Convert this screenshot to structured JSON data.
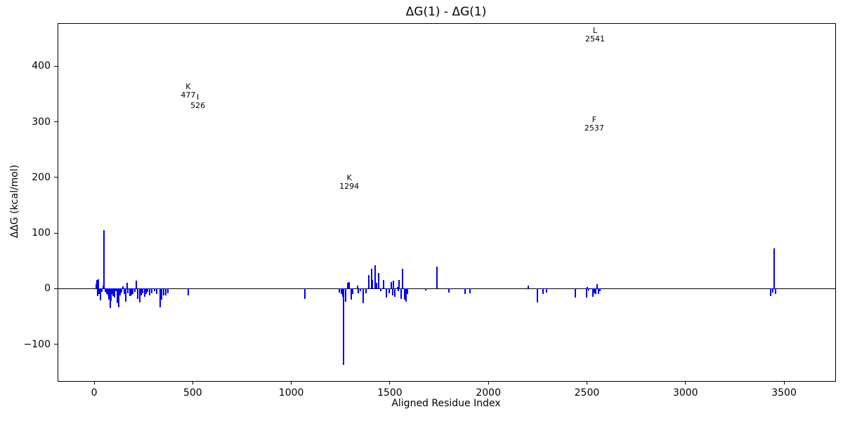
{
  "figure": {
    "background": "#ffffff",
    "axis_color": "#000000",
    "bar_color": "#0000ee"
  },
  "chart_data": {
    "type": "bar",
    "title": "ΔG(1) - ΔG(1)",
    "xlabel": "Aligned Residue Index",
    "ylabel": "ΔΔG (kcal/mol)",
    "xlim": [
      -182,
      3760
    ],
    "ylim": [
      -166,
      476
    ],
    "x_ticks": [
      0,
      500,
      1000,
      1500,
      2000,
      2500,
      3000,
      3500
    ],
    "y_ticks": [
      -100,
      0,
      100,
      200,
      300,
      400
    ],
    "grid": false,
    "legend": null,
    "bar_color": "#0000ee",
    "points": [
      [
        10,
        8
      ],
      [
        14,
        16
      ],
      [
        18,
        -14
      ],
      [
        22,
        17
      ],
      [
        26,
        -10
      ],
      [
        31,
        -21
      ],
      [
        38,
        -6
      ],
      [
        45,
        5
      ],
      [
        51,
        105
      ],
      [
        57,
        -6
      ],
      [
        64,
        -9
      ],
      [
        72,
        -12
      ],
      [
        76,
        -20
      ],
      [
        80,
        -35
      ],
      [
        84,
        -22
      ],
      [
        90,
        -10
      ],
      [
        97,
        -14
      ],
      [
        104,
        -16
      ],
      [
        110,
        -5
      ],
      [
        118,
        -26
      ],
      [
        124,
        -33
      ],
      [
        131,
        -12
      ],
      [
        138,
        -7
      ],
      [
        145,
        4
      ],
      [
        152,
        -10
      ],
      [
        160,
        -23
      ],
      [
        168,
        11
      ],
      [
        172,
        -8
      ],
      [
        180,
        -14
      ],
      [
        188,
        -12
      ],
      [
        196,
        -10
      ],
      [
        205,
        -6
      ],
      [
        215,
        14
      ],
      [
        222,
        -18
      ],
      [
        230,
        -25
      ],
      [
        238,
        -12
      ],
      [
        247,
        -8
      ],
      [
        256,
        -15
      ],
      [
        264,
        -10
      ],
      [
        272,
        -6
      ],
      [
        282,
        -12
      ],
      [
        292,
        -8
      ],
      [
        305,
        -5
      ],
      [
        318,
        -10
      ],
      [
        334,
        -33
      ],
      [
        342,
        -20
      ],
      [
        352,
        -12
      ],
      [
        363,
        -12
      ],
      [
        375,
        -8
      ],
      [
        479,
        -12
      ],
      [
        1070,
        -18
      ],
      [
        1245,
        -7
      ],
      [
        1253,
        -10
      ],
      [
        1260,
        -15
      ],
      [
        1264,
        -137
      ],
      [
        1277,
        -23
      ],
      [
        1285,
        10
      ],
      [
        1295,
        12
      ],
      [
        1306,
        -20
      ],
      [
        1312,
        -10
      ],
      [
        1335,
        5
      ],
      [
        1340,
        -8
      ],
      [
        1352,
        -5
      ],
      [
        1366,
        -26
      ],
      [
        1378,
        -8
      ],
      [
        1393,
        24
      ],
      [
        1407,
        36
      ],
      [
        1412,
        15
      ],
      [
        1424,
        42
      ],
      [
        1434,
        11
      ],
      [
        1444,
        28
      ],
      [
        1455,
        -5
      ],
      [
        1469,
        15
      ],
      [
        1483,
        -16
      ],
      [
        1498,
        -8
      ],
      [
        1509,
        12
      ],
      [
        1514,
        -12
      ],
      [
        1519,
        14
      ],
      [
        1527,
        -15
      ],
      [
        1540,
        3
      ],
      [
        1544,
        -5
      ],
      [
        1548,
        15
      ],
      [
        1556,
        -18
      ],
      [
        1564,
        36
      ],
      [
        1574,
        -20
      ],
      [
        1582,
        -23
      ],
      [
        1590,
        -10
      ],
      [
        1682,
        -3
      ],
      [
        1738,
        40
      ],
      [
        1801,
        -7
      ],
      [
        1881,
        -10
      ],
      [
        1905,
        -8
      ],
      [
        2201,
        5
      ],
      [
        2249,
        -25
      ],
      [
        2276,
        -9
      ],
      [
        2294,
        -7
      ],
      [
        2440,
        -16
      ],
      [
        2498,
        -16
      ],
      [
        2503,
        3
      ],
      [
        2508,
        -3
      ],
      [
        2531,
        -15
      ],
      [
        2537,
        -8
      ],
      [
        2543,
        -10
      ],
      [
        2552,
        8
      ],
      [
        2559,
        -10
      ],
      [
        2565,
        -5
      ],
      [
        3431,
        -14
      ],
      [
        3444,
        -7
      ],
      [
        3451,
        73
      ],
      [
        3458,
        -10
      ]
    ],
    "annotations": [
      {
        "residue": "K",
        "index": "477",
        "x": 477,
        "y": 363
      },
      {
        "residue": "I",
        "index": "526",
        "x": 526,
        "y": 344
      },
      {
        "residue": "K",
        "index": "1294",
        "x": 1294,
        "y": 198
      },
      {
        "residue": "F",
        "index": "2537",
        "x": 2537,
        "y": 303
      },
      {
        "residue": "L",
        "index": "2541",
        "x": 2541,
        "y": 463
      }
    ]
  }
}
